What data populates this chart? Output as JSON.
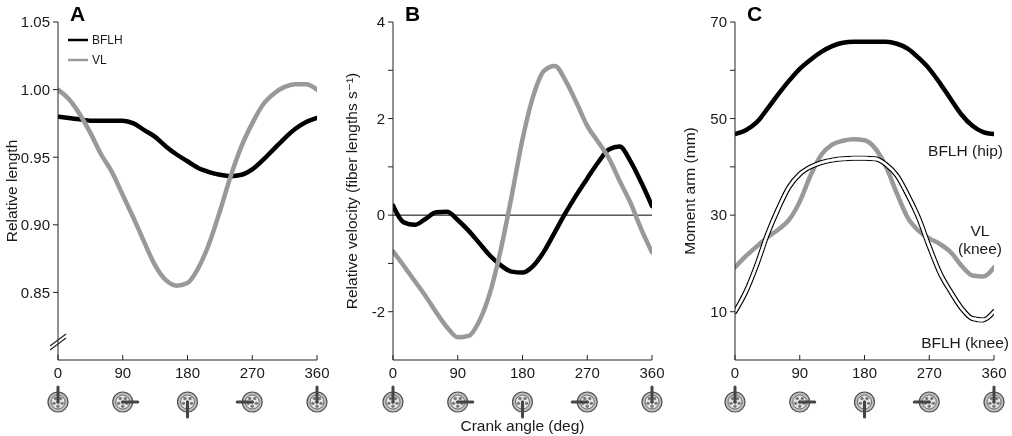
{
  "chart_data": [
    {
      "type": "line",
      "title": "A",
      "ylabel": "Relative length",
      "x": [
        0,
        15,
        30,
        45,
        60,
        75,
        90,
        105,
        120,
        135,
        150,
        165,
        180,
        195,
        210,
        225,
        240,
        255,
        270,
        285,
        300,
        315,
        330,
        345,
        360
      ],
      "series": [
        {
          "name": "BFLH",
          "color": "#000000",
          "values": [
            0.98,
            0.979,
            0.978,
            0.977,
            0.977,
            0.977,
            0.977,
            0.975,
            0.97,
            0.965,
            0.958,
            0.952,
            0.947,
            0.942,
            0.939,
            0.937,
            0.936,
            0.937,
            0.941,
            0.948,
            0.956,
            0.964,
            0.971,
            0.976,
            0.979
          ]
        },
        {
          "name": "VL",
          "color": "#999999",
          "values": [
            1.0,
            0.993,
            0.982,
            0.968,
            0.952,
            0.939,
            0.922,
            0.905,
            0.887,
            0.87,
            0.859,
            0.855,
            0.857,
            0.868,
            0.886,
            0.91,
            0.936,
            0.958,
            0.975,
            0.989,
            0.997,
            1.002,
            1.004,
            1.004,
            1.0
          ]
        }
      ],
      "xlim": [
        0,
        360
      ],
      "xticks": [
        0,
        90,
        180,
        270,
        360
      ],
      "ylim": [
        0.8,
        1.05
      ],
      "yticks": [
        0.85,
        {
          "value": 0.9,
          "label": "0.90"
        },
        0.95,
        {
          "value": 1.0,
          "label": "1.00"
        },
        1.05
      ],
      "legend": "top left"
    },
    {
      "type": "line",
      "title": "B",
      "xlabel": "Crank angle (deg)",
      "ylabel": "Relative velocity (fiber lengths s⁻¹)",
      "x": [
        0,
        15,
        30,
        45,
        60,
        75,
        90,
        105,
        120,
        135,
        150,
        165,
        180,
        195,
        210,
        225,
        240,
        255,
        270,
        285,
        300,
        315,
        330,
        345,
        360
      ],
      "series": [
        {
          "color": "#000000",
          "values": [
            0.2,
            -0.15,
            -0.2,
            -0.08,
            0.06,
            0.07,
            -0.1,
            -0.32,
            -0.58,
            -0.84,
            -1.04,
            -1.17,
            -1.19,
            -1.05,
            -0.75,
            -0.35,
            0.05,
            0.42,
            0.76,
            1.09,
            1.36,
            1.42,
            1.12,
            0.68,
            0.19
          ]
        },
        {
          "color": "#999999",
          "values": [
            -0.75,
            -1.05,
            -1.36,
            -1.67,
            -2.01,
            -2.32,
            -2.53,
            -2.5,
            -2.19,
            -1.6,
            -0.7,
            0.4,
            1.57,
            2.47,
            2.99,
            3.09,
            2.78,
            2.33,
            1.85,
            1.52,
            1.18,
            0.71,
            0.26,
            -0.29,
            -0.77
          ]
        }
      ],
      "xlim": [
        0,
        360
      ],
      "xticks": [
        0,
        90,
        180,
        270,
        360
      ],
      "ylim": [
        -3,
        4
      ],
      "yticks": [
        -2,
        {
          "value": -1,
          "label": null
        },
        0,
        {
          "value": 1,
          "label": null
        },
        2,
        {
          "value": 3,
          "label": null
        },
        4
      ],
      "ref_lines": [
        {
          "axis": "y",
          "value": 0,
          "color": "#000000"
        }
      ]
    },
    {
      "type": "line",
      "title": "C",
      "ylabel": "Moment arm (mm)",
      "x": [
        0,
        15,
        30,
        45,
        60,
        75,
        90,
        105,
        120,
        135,
        150,
        165,
        180,
        195,
        210,
        225,
        240,
        255,
        270,
        285,
        300,
        315,
        330,
        345,
        360
      ],
      "series": [
        {
          "name": "BFLH (hip)",
          "color": "#000000",
          "values": [
            46.8,
            47.6,
            49.2,
            52.0,
            55.0,
            57.8,
            60.3,
            62.2,
            63.8,
            65.0,
            65.7,
            65.9,
            65.9,
            65.9,
            65.9,
            65.5,
            64.5,
            62.6,
            60.3,
            57.3,
            54.0,
            50.8,
            48.5,
            47.2,
            46.8
          ]
        },
        {
          "name": "VL (knee)",
          "color": "#999999",
          "values": [
            19.2,
            21.5,
            23.5,
            25.4,
            27.0,
            29.0,
            32.8,
            38.2,
            42.5,
            44.6,
            45.4,
            45.7,
            45.5,
            43.8,
            40.0,
            34.5,
            29.5,
            26.8,
            25.2,
            24.0,
            22.3,
            19.5,
            17.5,
            17.3,
            19.2
          ]
        },
        {
          "name": "BFLH (knee)",
          "color": "#000000",
          "values": [
            10.0,
            14.1,
            19.6,
            26.0,
            31.3,
            35.8,
            38.5,
            40.0,
            40.9,
            41.4,
            41.7,
            41.8,
            41.8,
            41.7,
            40.5,
            38.2,
            34.2,
            29.5,
            23.5,
            18.0,
            14.1,
            10.7,
            8.6,
            8.3,
            10.0
          ]
        }
      ],
      "xlim": [
        0,
        360
      ],
      "xticks": [
        0,
        90,
        180,
        270,
        360
      ],
      "ylim": [
        0,
        70
      ],
      "yticks": [
        10,
        30,
        {
          "value": 40,
          "label": null
        },
        50,
        {
          "value": 60,
          "label": null
        },
        70
      ]
    }
  ]
}
